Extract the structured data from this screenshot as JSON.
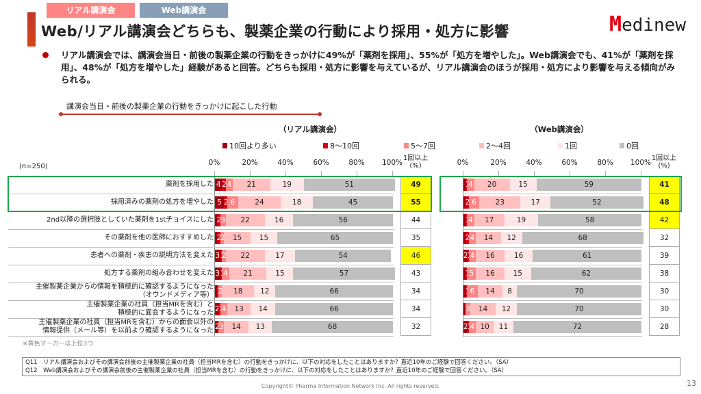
{
  "tags": {
    "real": "リアル講演会",
    "web": "Web講演会"
  },
  "title": "Web/リアル講演会どちらも、製薬企業の行動により採用・処方に影響",
  "logo": {
    "mark": "M",
    "text": "edinew"
  },
  "summary": "リアル講演会では、講演会当日・前後の製薬企業の行動をきっかけに49%が「薬剤を採用」、55%が「処方を増やした」。Web講演会でも、41%が「薬剤を採用」、48%が「処方を増やした」経験があると回答。どちらも採用・処方に影響を与えているが、リアル講演会のほうが採用・処方により影響を与える傾向がみられる。",
  "subheading": "講演会当日・前後の製薬企業の行動をきっかけに起こした行動",
  "n_label": "(n=250)",
  "note": "※黄色マーカーは上位3つ",
  "questions": [
    "Q11　リアル講演会およびその講演会前後の主催製薬企業の社員（担当MRを含む）の行動をきっかけに、以下の対応をしたことはありますか？直近10年のご経験で回答ください。（SA）",
    "Q12　Web講演会およびその講演会前後の主催製薬企業の社員（担当MRを含む）の行動をきっかけに、以下の対応をしたことはありますか？直近10年のご経験で回答ください。（SA）"
  ],
  "copyright": "Copyright© Pharma Information Network Inc. All rights reserved.",
  "page_number": "13",
  "colors": {
    "highlight": "#ffff00",
    "box": "#1aa74a"
  },
  "chart_data": {
    "type": "bar",
    "stacked": true,
    "orientation": "horizontal",
    "xlim": [
      0,
      100
    ],
    "xticks": [
      "0%",
      "20%",
      "40%",
      "60%",
      "80%",
      "100%"
    ],
    "total_header": "1回以上\n(%)",
    "legend": [
      {
        "name": "10回より多い",
        "color": "#a50010"
      },
      {
        "name": "8〜10回",
        "color": "#d9000f"
      },
      {
        "name": "5〜7回",
        "color": "#ff8585"
      },
      {
        "name": "2〜4回",
        "color": "#ffbfbf"
      },
      {
        "name": "1回",
        "color": "#fde6e6"
      },
      {
        "name": "0回",
        "color": "#bfbfbf"
      }
    ],
    "categories": [
      "薬剤を採用した",
      "採用済みの薬剤の処方を増やした",
      "2nd以降の選択肢としていた薬剤を1stチョイスにした",
      "その薬剤を他の医師におすすめした",
      "患者への薬剤・疾患の説明方法を変えた",
      "処方する薬剤の組み合わせを変えた",
      "主催製薬企業からの情報を積極的に確認するようになった\n（オウンドメディア等）",
      "主催製薬企業の社員（担当MRを含む）と\n積極的に面会するようになった",
      "主催製薬企業の社員（担当MRを含む）からの面会以外の\n情報提供（メール等）を以前より確認するようになった"
    ],
    "panels": [
      {
        "title": "（リアル講演会）",
        "values": [
          [
            4,
            2,
            4,
            21,
            19,
            51
          ],
          [
            5,
            2,
            6,
            24,
            18,
            45
          ],
          [
            1,
            2,
            3,
            22,
            16,
            56
          ],
          [
            1,
            2,
            2,
            15,
            15,
            65
          ],
          [
            3,
            1,
            2,
            22,
            17,
            54
          ],
          [
            3,
            1,
            4,
            21,
            15,
            57
          ],
          [
            1,
            1,
            2,
            18,
            12,
            66
          ],
          [
            2,
            1,
            4,
            13,
            14,
            66
          ],
          [
            2,
            0,
            3,
            14,
            13,
            68
          ]
        ],
        "totals": [
          49,
          55,
          44,
          35,
          46,
          43,
          34,
          34,
          32
        ],
        "highlighted": [
          0,
          1,
          4
        ]
      },
      {
        "title": "（Web講演会）",
        "values": [
          [
            1,
            1,
            4,
            20,
            15,
            59
          ],
          [
            1,
            2,
            6,
            23,
            17,
            52
          ],
          [
            1,
            1,
            4,
            17,
            19,
            58
          ],
          [
            1,
            2,
            4,
            14,
            12,
            68
          ],
          [
            2,
            1,
            4,
            16,
            16,
            61
          ],
          [
            1,
            1,
            5,
            16,
            15,
            62
          ],
          [
            1,
            1,
            6,
            14,
            8,
            70
          ],
          [
            1,
            0,
            3,
            14,
            12,
            70
          ],
          [
            2,
            1,
            4,
            10,
            11,
            72
          ]
        ],
        "totals": [
          41,
          48,
          42,
          32,
          39,
          38,
          30,
          30,
          28
        ],
        "highlighted": [
          0,
          1,
          2
        ]
      }
    ]
  }
}
